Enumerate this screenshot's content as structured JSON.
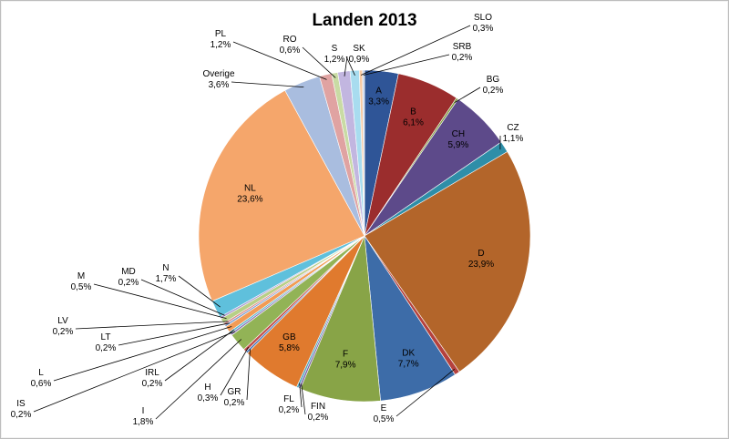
{
  "chart_data": {
    "type": "pie",
    "title": "Landen 2013",
    "slices": [
      {
        "label": "A",
        "value_label": "3,3%",
        "value": 3.3,
        "color": "#2f5597"
      },
      {
        "label": "B",
        "value_label": "6,1%",
        "value": 6.1,
        "color": "#9b2d2d"
      },
      {
        "label": "BG",
        "value_label": "0,2%",
        "value": 0.2,
        "color": "#7f9a3a"
      },
      {
        "label": "CH",
        "value_label": "5,9%",
        "value": 5.9,
        "color": "#5d4a8a"
      },
      {
        "label": "CZ",
        "value_label": "1,1%",
        "value": 1.1,
        "color": "#2e8ea8"
      },
      {
        "label": "D",
        "value_label": "23,9%",
        "value": 23.9,
        "color": "#b3652a"
      },
      {
        "label": "E",
        "value_label": "0,5%",
        "value": 0.5,
        "color": "#b5413d"
      },
      {
        "label": "DK",
        "value_label": "7,7%",
        "value": 7.7,
        "color": "#3d6ca8"
      },
      {
        "label": "F",
        "value_label": "7,9%",
        "value": 7.9,
        "color": "#88a447"
      },
      {
        "label": "FIN",
        "value_label": "0,2%",
        "value": 0.2,
        "color": "#7a64a6"
      },
      {
        "label": "FL",
        "value_label": "0,2%",
        "value": 0.2,
        "color": "#4ca3bd"
      },
      {
        "label": "GB",
        "value_label": "5,8%",
        "value": 5.8,
        "color": "#e07a2e"
      },
      {
        "label": "GR",
        "value_label": "0,2%",
        "value": 0.2,
        "color": "#4a77b8"
      },
      {
        "label": "H",
        "value_label": "0,3%",
        "value": 0.3,
        "color": "#c24f4b"
      },
      {
        "label": "I",
        "value_label": "1,8%",
        "value": 1.8,
        "color": "#92b356"
      },
      {
        "label": "IS",
        "value_label": "0,2%",
        "value": 0.2,
        "color": "#8a76b4"
      },
      {
        "label": "IRL",
        "value_label": "0,2%",
        "value": 0.2,
        "color": "#5cb5cf"
      },
      {
        "label": "L",
        "value_label": "0,6%",
        "value": 0.6,
        "color": "#f29b55"
      },
      {
        "label": "LT",
        "value_label": "0,2%",
        "value": 0.2,
        "color": "#7e9fd1"
      },
      {
        "label": "LV",
        "value_label": "0,2%",
        "value": 0.2,
        "color": "#d98a88"
      },
      {
        "label": "M",
        "value_label": "0,5%",
        "value": 0.5,
        "color": "#b8cf86"
      },
      {
        "label": "MD",
        "value_label": "0,2%",
        "value": 0.2,
        "color": "#a99ad0"
      },
      {
        "label": "N",
        "value_label": "1,7%",
        "value": 1.7,
        "color": "#5fc0dc"
      },
      {
        "label": "NL",
        "value_label": "23,6%",
        "value": 23.6,
        "color": "#f5a66b"
      },
      {
        "label": "Overige",
        "value_label": "3,6%",
        "value": 3.6,
        "color": "#a9bddf"
      },
      {
        "label": "PL",
        "value_label": "1,2%",
        "value": 1.2,
        "color": "#e0a3a2"
      },
      {
        "label": "RO",
        "value_label": "0,6%",
        "value": 0.6,
        "color": "#c9dba4"
      },
      {
        "label": "S",
        "value_label": "1,2%",
        "value": 1.2,
        "color": "#c2b6e0"
      },
      {
        "label": "SK",
        "value_label": "0,9%",
        "value": 0.9,
        "color": "#a8dcef"
      },
      {
        "label": "SLO",
        "value_label": "0,3%",
        "value": 0.3,
        "color": "#f7c9a1"
      },
      {
        "label": "SRB",
        "value_label": "0,2%",
        "value": 0.2,
        "color": "#c6d4ec"
      }
    ]
  }
}
